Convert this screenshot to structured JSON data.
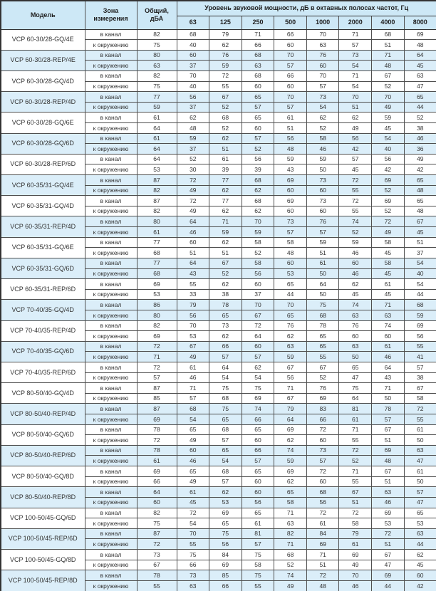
{
  "table": {
    "header": {
      "model": "Модель",
      "zone_line1": "Зона",
      "zone_line2": "измерения",
      "total_line1": "Общий,",
      "total_line2": "дБА",
      "band_title": "Уровень звуковой мощности, дБ в октавных полосах частот, Гц",
      "frequencies": [
        "63",
        "125",
        "250",
        "500",
        "1000",
        "2000",
        "4000",
        "8000"
      ]
    },
    "zone_labels": {
      "duct": "в канал",
      "ambient": "к окружению"
    },
    "colors": {
      "header_bg": "#cde8f6",
      "highlight_bg": "#dbeef9",
      "border": "#4f4f4f"
    },
    "rows": [
      {
        "model": "VCP 60-30/28-GQ/4E",
        "highlight": false,
        "duct": [
          82,
          68,
          79,
          71,
          66,
          70,
          71,
          68,
          69
        ],
        "ambient": [
          75,
          40,
          62,
          66,
          60,
          63,
          57,
          51,
          48
        ]
      },
      {
        "model": "VCP 60-30/28-REP/4E",
        "highlight": true,
        "duct": [
          80,
          60,
          76,
          68,
          70,
          76,
          73,
          71,
          64
        ],
        "ambient": [
          63,
          37,
          59,
          63,
          57,
          60,
          54,
          48,
          45
        ]
      },
      {
        "model": "VCP 60-30/28-GQ/4D",
        "highlight": false,
        "duct": [
          82,
          70,
          72,
          68,
          66,
          70,
          71,
          67,
          63
        ],
        "ambient": [
          75,
          40,
          55,
          60,
          60,
          57,
          54,
          52,
          47
        ]
      },
      {
        "model": "VCP 60-30/28-REP/4D",
        "highlight": true,
        "duct": [
          77,
          56,
          67,
          65,
          70,
          73,
          70,
          70,
          65
        ],
        "ambient": [
          59,
          37,
          52,
          57,
          57,
          54,
          51,
          49,
          44
        ]
      },
      {
        "model": "VCP 60-30/28-GQ/6E",
        "highlight": false,
        "duct": [
          61,
          62,
          68,
          65,
          61,
          62,
          62,
          59,
          52
        ],
        "ambient": [
          64,
          48,
          52,
          60,
          51,
          52,
          49,
          45,
          38
        ]
      },
      {
        "model": "VCP 60-30/28-GQ/6D",
        "highlight": true,
        "duct": [
          61,
          59,
          62,
          57,
          56,
          58,
          56,
          54,
          46
        ],
        "ambient": [
          64,
          37,
          51,
          52,
          48,
          46,
          42,
          40,
          36
        ]
      },
      {
        "model": "VCP 60-30/28-REP/6D",
        "highlight": false,
        "duct": [
          64,
          52,
          61,
          56,
          59,
          59,
          57,
          56,
          49
        ],
        "ambient": [
          53,
          30,
          39,
          39,
          43,
          50,
          45,
          42,
          42
        ]
      },
      {
        "model": "VCP 60-35/31-GQ/4E",
        "highlight": true,
        "duct": [
          87,
          72,
          77,
          68,
          69,
          73,
          72,
          69,
          65
        ],
        "ambient": [
          82,
          49,
          62,
          62,
          60,
          60,
          55,
          52,
          48
        ]
      },
      {
        "model": "VCP 60-35/31-GQ/4D",
        "highlight": false,
        "duct": [
          87,
          72,
          77,
          68,
          69,
          73,
          72,
          69,
          65
        ],
        "ambient": [
          82,
          49,
          62,
          62,
          60,
          60,
          55,
          52,
          48
        ]
      },
      {
        "model": "VCP 60-35/31-REP/4D",
        "highlight": true,
        "duct": [
          80,
          64,
          71,
          70,
          73,
          76,
          74,
          72,
          67
        ],
        "ambient": [
          61,
          46,
          59,
          59,
          57,
          57,
          52,
          49,
          45
        ]
      },
      {
        "model": "VCP 60-35/31-GQ/6E",
        "highlight": false,
        "duct": [
          77,
          60,
          62,
          58,
          58,
          59,
          59,
          58,
          51
        ],
        "ambient": [
          68,
          51,
          51,
          52,
          48,
          51,
          46,
          45,
          37
        ]
      },
      {
        "model": "VCP 60-35/31-GQ/6D",
        "highlight": true,
        "duct": [
          77,
          64,
          67,
          58,
          60,
          61,
          60,
          58,
          54
        ],
        "ambient": [
          68,
          43,
          52,
          56,
          53,
          50,
          46,
          45,
          40
        ]
      },
      {
        "model": "VCP 60-35/31-REP/6D",
        "highlight": false,
        "duct": [
          69,
          55,
          62,
          60,
          65,
          64,
          62,
          61,
          54
        ],
        "ambient": [
          53,
          33,
          38,
          37,
          44,
          50,
          45,
          45,
          44
        ]
      },
      {
        "model": "VCP 70-40/35-GQ/4D",
        "highlight": true,
        "duct": [
          86,
          79,
          78,
          70,
          70,
          75,
          74,
          71,
          68
        ],
        "ambient": [
          80,
          56,
          65,
          67,
          65,
          68,
          63,
          63,
          59
        ]
      },
      {
        "model": "VCP 70-40/35-REP/4D",
        "highlight": false,
        "duct": [
          82,
          70,
          73,
          72,
          76,
          78,
          76,
          74,
          69
        ],
        "ambient": [
          69,
          53,
          62,
          64,
          62,
          65,
          60,
          60,
          56
        ]
      },
      {
        "model": "VCP 70-40/35-GQ/6D",
        "highlight": true,
        "duct": [
          72,
          67,
          66,
          60,
          63,
          65,
          63,
          61,
          55
        ],
        "ambient": [
          71,
          49,
          57,
          57,
          59,
          55,
          50,
          46,
          41
        ]
      },
      {
        "model": "VCP 70-40/35-REP/6D",
        "highlight": false,
        "duct": [
          72,
          61,
          64,
          62,
          67,
          67,
          65,
          64,
          57
        ],
        "ambient": [
          57,
          46,
          54,
          54,
          56,
          52,
          47,
          43,
          38
        ]
      },
      {
        "model": "VCP 80-50/40-GQ/4D",
        "highlight": false,
        "duct": [
          87,
          71,
          75,
          75,
          71,
          76,
          75,
          71,
          67
        ],
        "ambient": [
          85,
          57,
          68,
          69,
          67,
          69,
          64,
          50,
          58
        ]
      },
      {
        "model": "VCP 80-50/40-REP/4D",
        "highlight": true,
        "duct": [
          87,
          68,
          75,
          74,
          79,
          83,
          81,
          78,
          72
        ],
        "ambient": [
          69,
          54,
          65,
          66,
          64,
          66,
          61,
          57,
          55
        ]
      },
      {
        "model": "VCP 80-50/40-GQ/6D",
        "highlight": false,
        "duct": [
          78,
          65,
          68,
          65,
          69,
          72,
          71,
          67,
          61
        ],
        "ambient": [
          72,
          49,
          57,
          60,
          62,
          60,
          55,
          51,
          50
        ]
      },
      {
        "model": "VCP 80-50/40-REP/6D",
        "highlight": true,
        "duct": [
          78,
          60,
          65,
          66,
          74,
          73,
          72,
          69,
          63
        ],
        "ambient": [
          61,
          46,
          54,
          57,
          59,
          57,
          52,
          48,
          47
        ]
      },
      {
        "model": "VCP 80-50/40-GQ/8D",
        "highlight": false,
        "duct": [
          69,
          65,
          68,
          65,
          69,
          72,
          71,
          67,
          61
        ],
        "ambient": [
          66,
          49,
          57,
          60,
          62,
          60,
          55,
          51,
          50
        ]
      },
      {
        "model": "VCP 80-50/40-REP/8D",
        "highlight": true,
        "duct": [
          64,
          61,
          62,
          60,
          65,
          68,
          67,
          63,
          57
        ],
        "ambient": [
          60,
          45,
          53,
          56,
          58,
          56,
          51,
          46,
          47
        ]
      },
      {
        "model": "VCP 100-50/45-GQ/6D",
        "highlight": false,
        "duct": [
          82,
          72,
          69,
          65,
          71,
          72,
          72,
          69,
          65
        ],
        "ambient": [
          75,
          54,
          65,
          61,
          63,
          61,
          58,
          53,
          53
        ]
      },
      {
        "model": "VCP 100-50/45-REP/6D",
        "highlight": true,
        "duct": [
          87,
          70,
          75,
          81,
          82,
          84,
          79,
          72,
          63
        ],
        "ambient": [
          72,
          55,
          56,
          57,
          71,
          69,
          61,
          51,
          44
        ]
      },
      {
        "model": "VCP 100-50/45-GQ/8D",
        "highlight": false,
        "duct": [
          73,
          75,
          84,
          75,
          68,
          71,
          69,
          67,
          62
        ],
        "ambient": [
          67,
          66,
          69,
          58,
          52,
          51,
          49,
          47,
          45
        ]
      },
      {
        "model": "VCP 100-50/45-REP/8D",
        "highlight": true,
        "duct": [
          78,
          73,
          85,
          75,
          74,
          72,
          70,
          69,
          60
        ],
        "ambient": [
          55,
          63,
          66,
          55,
          49,
          48,
          46,
          44,
          42
        ]
      }
    ]
  }
}
